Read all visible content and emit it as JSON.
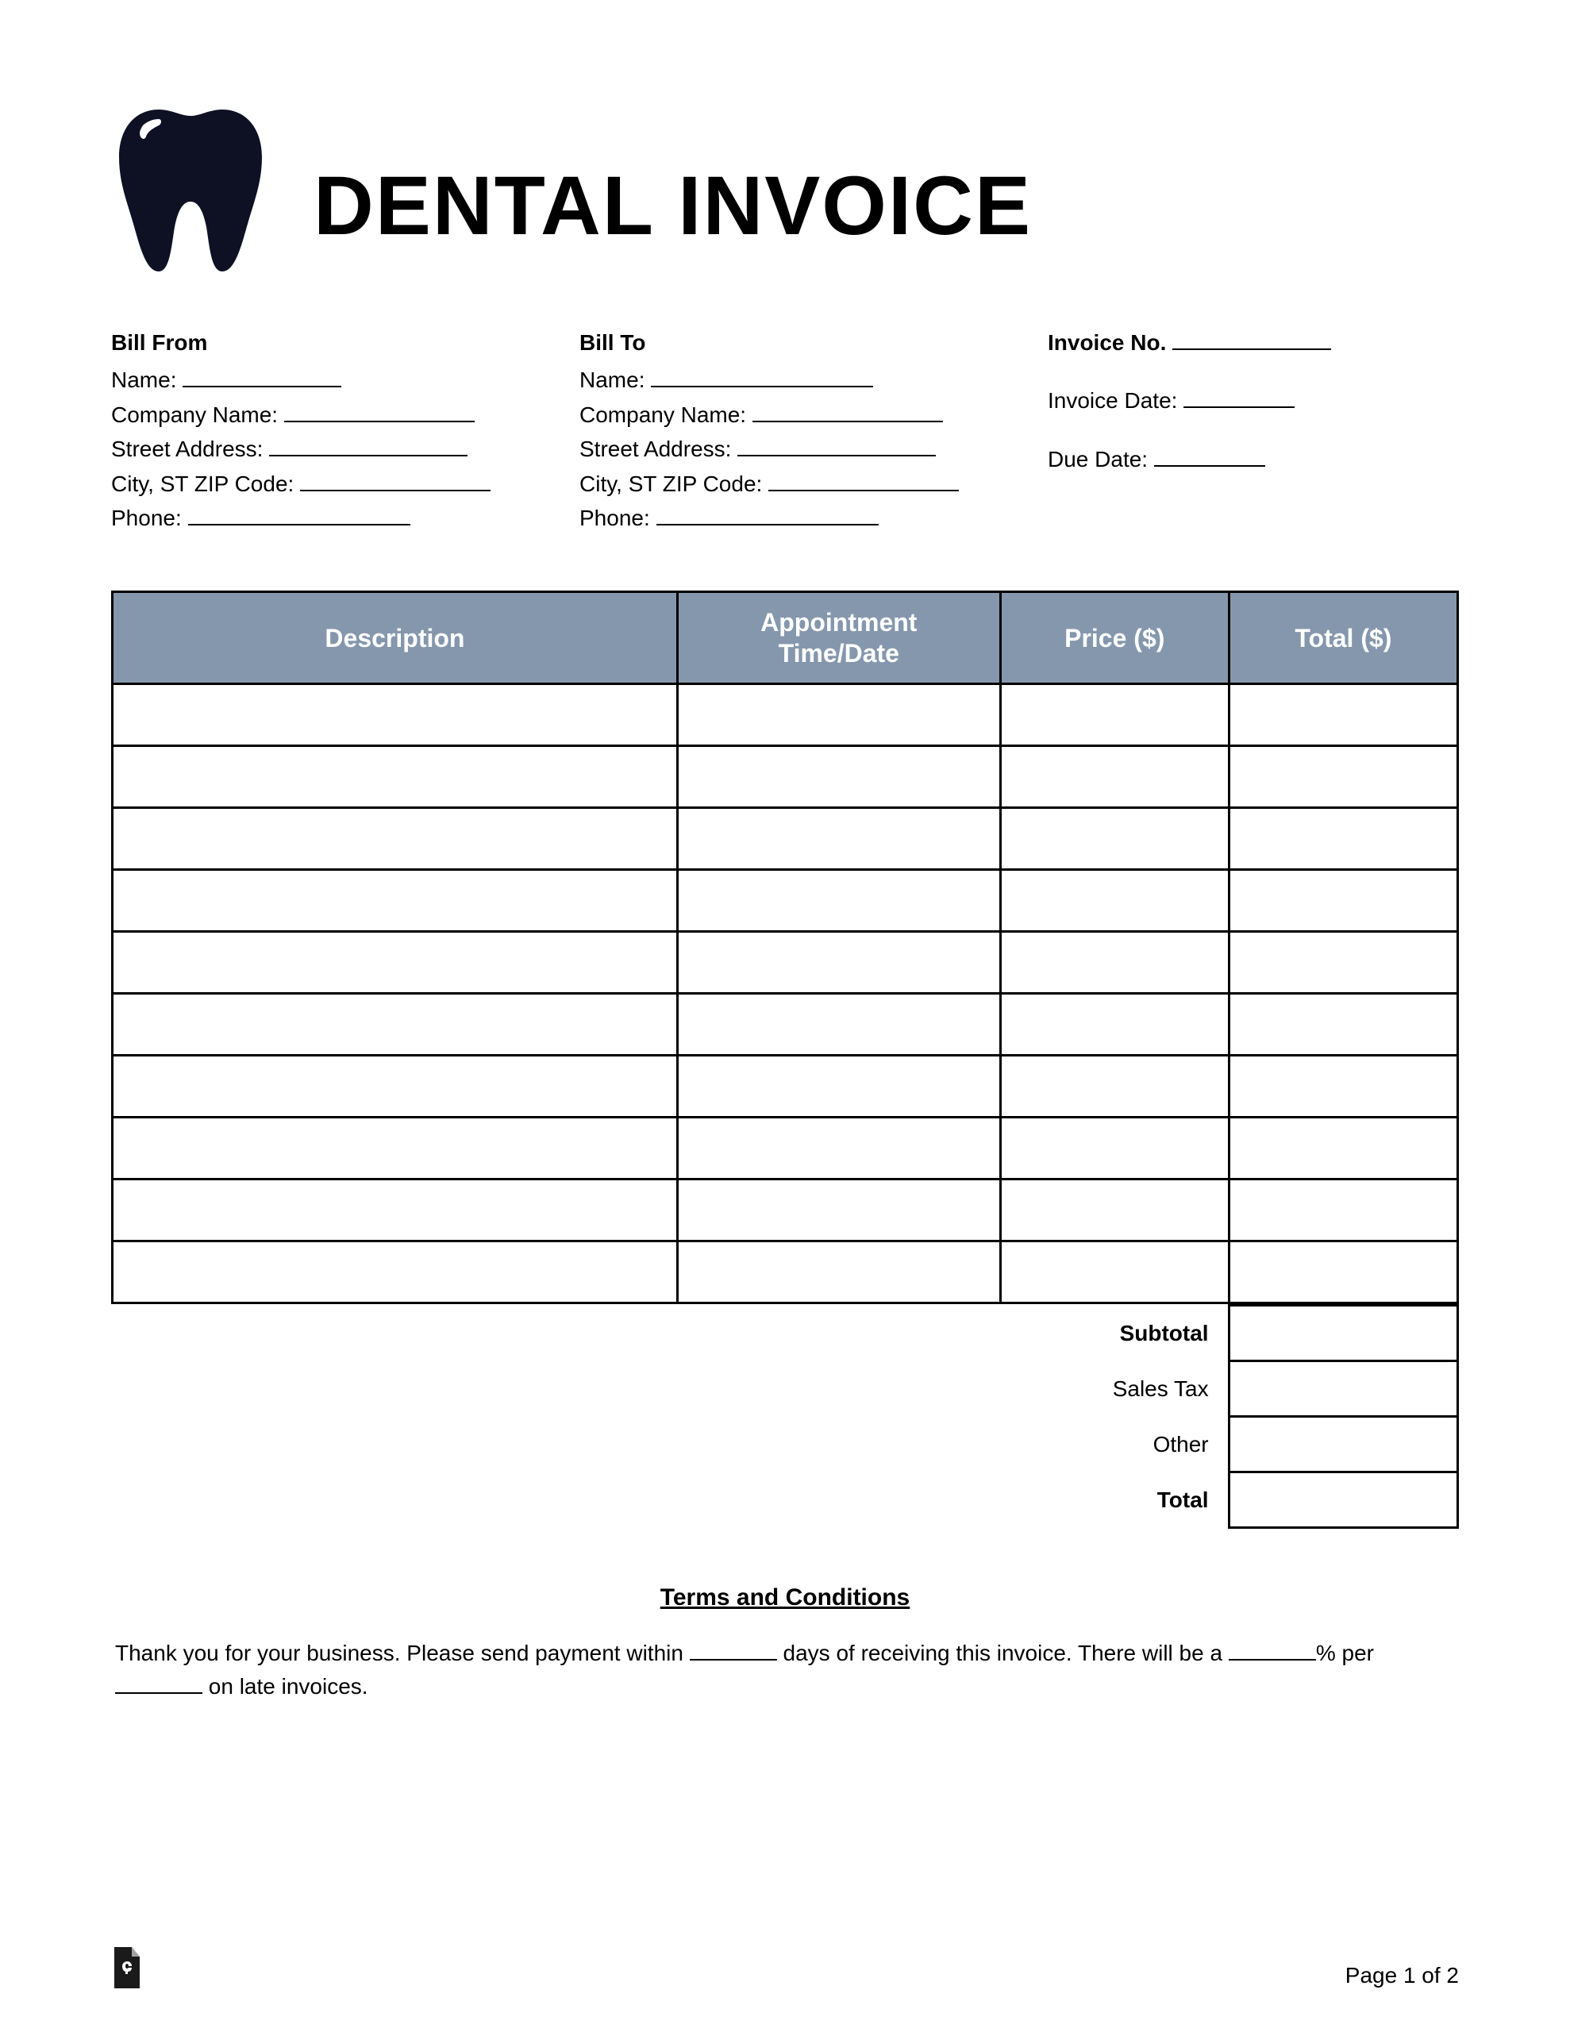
{
  "title": "DENTAL INVOICE",
  "tooth_color": "#0e1024",
  "header_bg": "#8597ad",
  "header_fg": "#ffffff",
  "bill_from": {
    "heading": "Bill From",
    "name_label": "Name:",
    "company_label": "Company Name:",
    "street_label": "Street Address:",
    "city_label": "City, ST ZIP Code:",
    "phone_label": "Phone:"
  },
  "bill_to": {
    "heading": "Bill To",
    "name_label": "Name:",
    "company_label": "Company Name:",
    "street_label": "Street Address:",
    "city_label": "City, ST ZIP Code:",
    "phone_label": "Phone:"
  },
  "meta": {
    "invoice_no_label": "Invoice No.",
    "invoice_date_label": "Invoice Date:",
    "due_date_label": "Due Date:"
  },
  "table": {
    "columns": [
      "Description",
      "Appointment\nTime/Date",
      "Price ($)",
      "Total ($)"
    ],
    "row_count": 10
  },
  "summary": {
    "subtotal": "Subtotal",
    "sales_tax": "Sales Tax",
    "other": "Other",
    "total": "Total"
  },
  "terms": {
    "heading": "Terms and Conditions",
    "line1a": "Thank you for your business. Please send payment within ",
    "line1b": " days of receiving this invoice. There will be a ",
    "line1c": "% per ",
    "line1d": " on late invoices."
  },
  "footer": {
    "page_label": "Page 1 of 2"
  }
}
